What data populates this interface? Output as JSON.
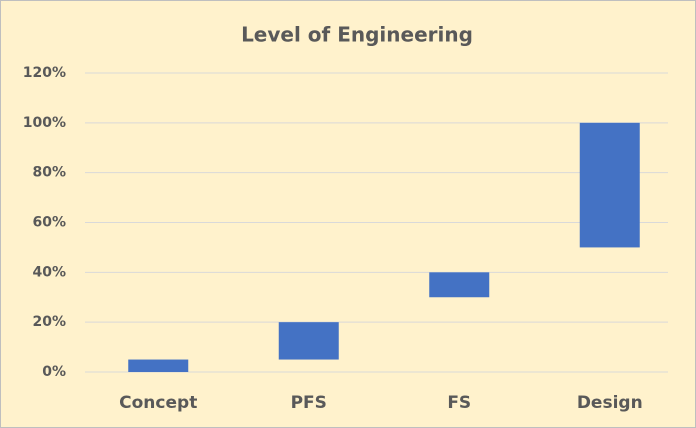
{
  "chart_data": {
    "type": "floating_bar",
    "title": "Level of Engineering",
    "categories": [
      "Concept",
      "PFS",
      "FS",
      "Design"
    ],
    "low": [
      0,
      5,
      30,
      50
    ],
    "high": [
      5,
      20,
      40,
      100
    ],
    "color": "#4472c4",
    "ylim": [
      0,
      120
    ],
    "yticks": [
      {
        "value": 0,
        "label": "0%"
      },
      {
        "value": 20,
        "label": "20%"
      },
      {
        "value": 40,
        "label": "40%"
      },
      {
        "value": 60,
        "label": "60%"
      },
      {
        "value": 80,
        "label": "80%"
      },
      {
        "value": 100,
        "label": "100%"
      },
      {
        "value": 120,
        "label": "120%"
      }
    ],
    "grid": true
  }
}
